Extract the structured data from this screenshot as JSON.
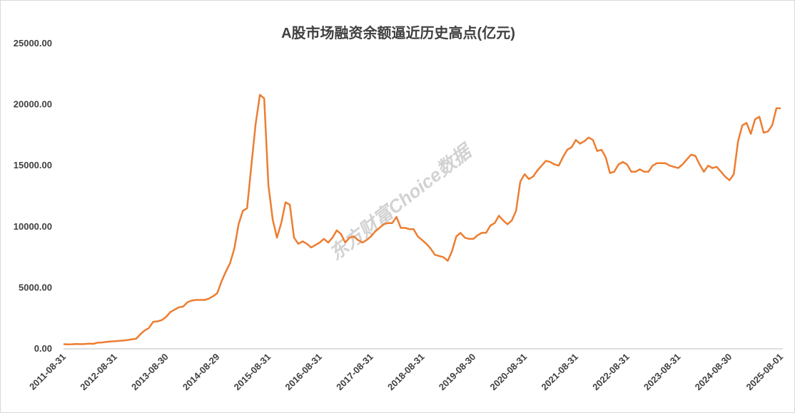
{
  "chart_data": {
    "type": "line",
    "title": "A股市场融资余额逼近历史高点(亿元)",
    "watermark": "东方财富Choice数据",
    "categories": [
      "2011-08-31",
      null,
      null,
      null,
      null,
      null,
      null,
      null,
      null,
      null,
      null,
      null,
      "2012-08-31",
      null,
      null,
      null,
      null,
      null,
      null,
      null,
      null,
      null,
      null,
      null,
      "2013-08-30",
      null,
      null,
      null,
      null,
      null,
      null,
      null,
      null,
      null,
      null,
      null,
      "2014-08-29",
      null,
      null,
      null,
      null,
      null,
      null,
      null,
      null,
      null,
      null,
      null,
      "2015-08-31",
      null,
      null,
      null,
      null,
      null,
      null,
      null,
      null,
      null,
      null,
      null,
      "2016-08-31",
      null,
      null,
      null,
      null,
      null,
      null,
      null,
      null,
      null,
      null,
      null,
      "2017-08-31",
      null,
      null,
      null,
      null,
      null,
      null,
      null,
      null,
      null,
      null,
      null,
      "2018-08-31",
      null,
      null,
      null,
      null,
      null,
      null,
      null,
      null,
      null,
      null,
      null,
      "2019-08-30",
      null,
      null,
      null,
      null,
      null,
      null,
      null,
      null,
      null,
      null,
      null,
      "2020-08-31",
      null,
      null,
      null,
      null,
      null,
      null,
      null,
      null,
      null,
      null,
      null,
      "2021-08-31",
      null,
      null,
      null,
      null,
      null,
      null,
      null,
      null,
      null,
      null,
      null,
      "2022-08-31",
      null,
      null,
      null,
      null,
      null,
      null,
      null,
      null,
      null,
      null,
      null,
      "2023-08-31",
      null,
      null,
      null,
      null,
      null,
      null,
      null,
      null,
      null,
      null,
      null,
      "2024-08-30",
      null,
      null,
      null,
      null,
      null,
      null,
      null,
      null,
      null,
      null,
      null,
      "2025-08-01"
    ],
    "series": [
      {
        "color": "#ED7D31",
        "values": [
          380,
          370,
          375,
          390,
          380,
          400,
          420,
          410,
          500,
          520,
          560,
          600,
          620,
          650,
          680,
          720,
          780,
          820,
          1200,
          1500,
          1700,
          2200,
          2250,
          2350,
          2600,
          3000,
          3200,
          3400,
          3450,
          3800,
          3950,
          4000,
          4000,
          4000,
          4100,
          4300,
          4550,
          5500,
          6300,
          7000,
          8200,
          10200,
          11300,
          11500,
          15000,
          18400,
          20800,
          20500,
          13400,
          10600,
          9100,
          10300,
          12000,
          11800,
          9100,
          8600,
          8800,
          8600,
          8300,
          8500,
          8700,
          9000,
          8700,
          9100,
          9700,
          9400,
          8700,
          9100,
          9200,
          8900,
          8700,
          8900,
          9200,
          9600,
          9900,
          10200,
          10300,
          10300,
          10800,
          9900,
          9900,
          9800,
          9800,
          9200,
          8900,
          8600,
          8200,
          7700,
          7600,
          7500,
          7200,
          8000,
          9200,
          9500,
          9100,
          9000,
          9000,
          9300,
          9500,
          9500,
          10100,
          10300,
          10900,
          10500,
          10200,
          10500,
          11300,
          13700,
          14300,
          13900,
          14100,
          14600,
          15000,
          15400,
          15300,
          15100,
          15000,
          15700,
          16300,
          16500,
          17100,
          16800,
          17000,
          17300,
          17100,
          16200,
          16300,
          15700,
          14400,
          14500,
          15100,
          15300,
          15100,
          14500,
          14500,
          14700,
          14500,
          14500,
          15000,
          15200,
          15200,
          15200,
          15000,
          14900,
          14800,
          15100,
          15500,
          15900,
          15800,
          15100,
          14500,
          15000,
          14800,
          14900,
          14500,
          14100,
          13800,
          14300,
          17000,
          18300,
          18500,
          17600,
          18800,
          19000,
          17700,
          17800,
          18300,
          19700,
          19700
        ]
      }
    ],
    "ylim": [
      0,
      25000
    ],
    "yticks": [
      {
        "value": 0,
        "label": "0.00"
      },
      {
        "value": 5000,
        "label": "5000.00"
      },
      {
        "value": 10000,
        "label": "10000.00"
      },
      {
        "value": 15000,
        "label": "15000.00"
      },
      {
        "value": 20000,
        "label": "20000.00"
      },
      {
        "value": 25000,
        "label": "25000.00"
      }
    ]
  }
}
